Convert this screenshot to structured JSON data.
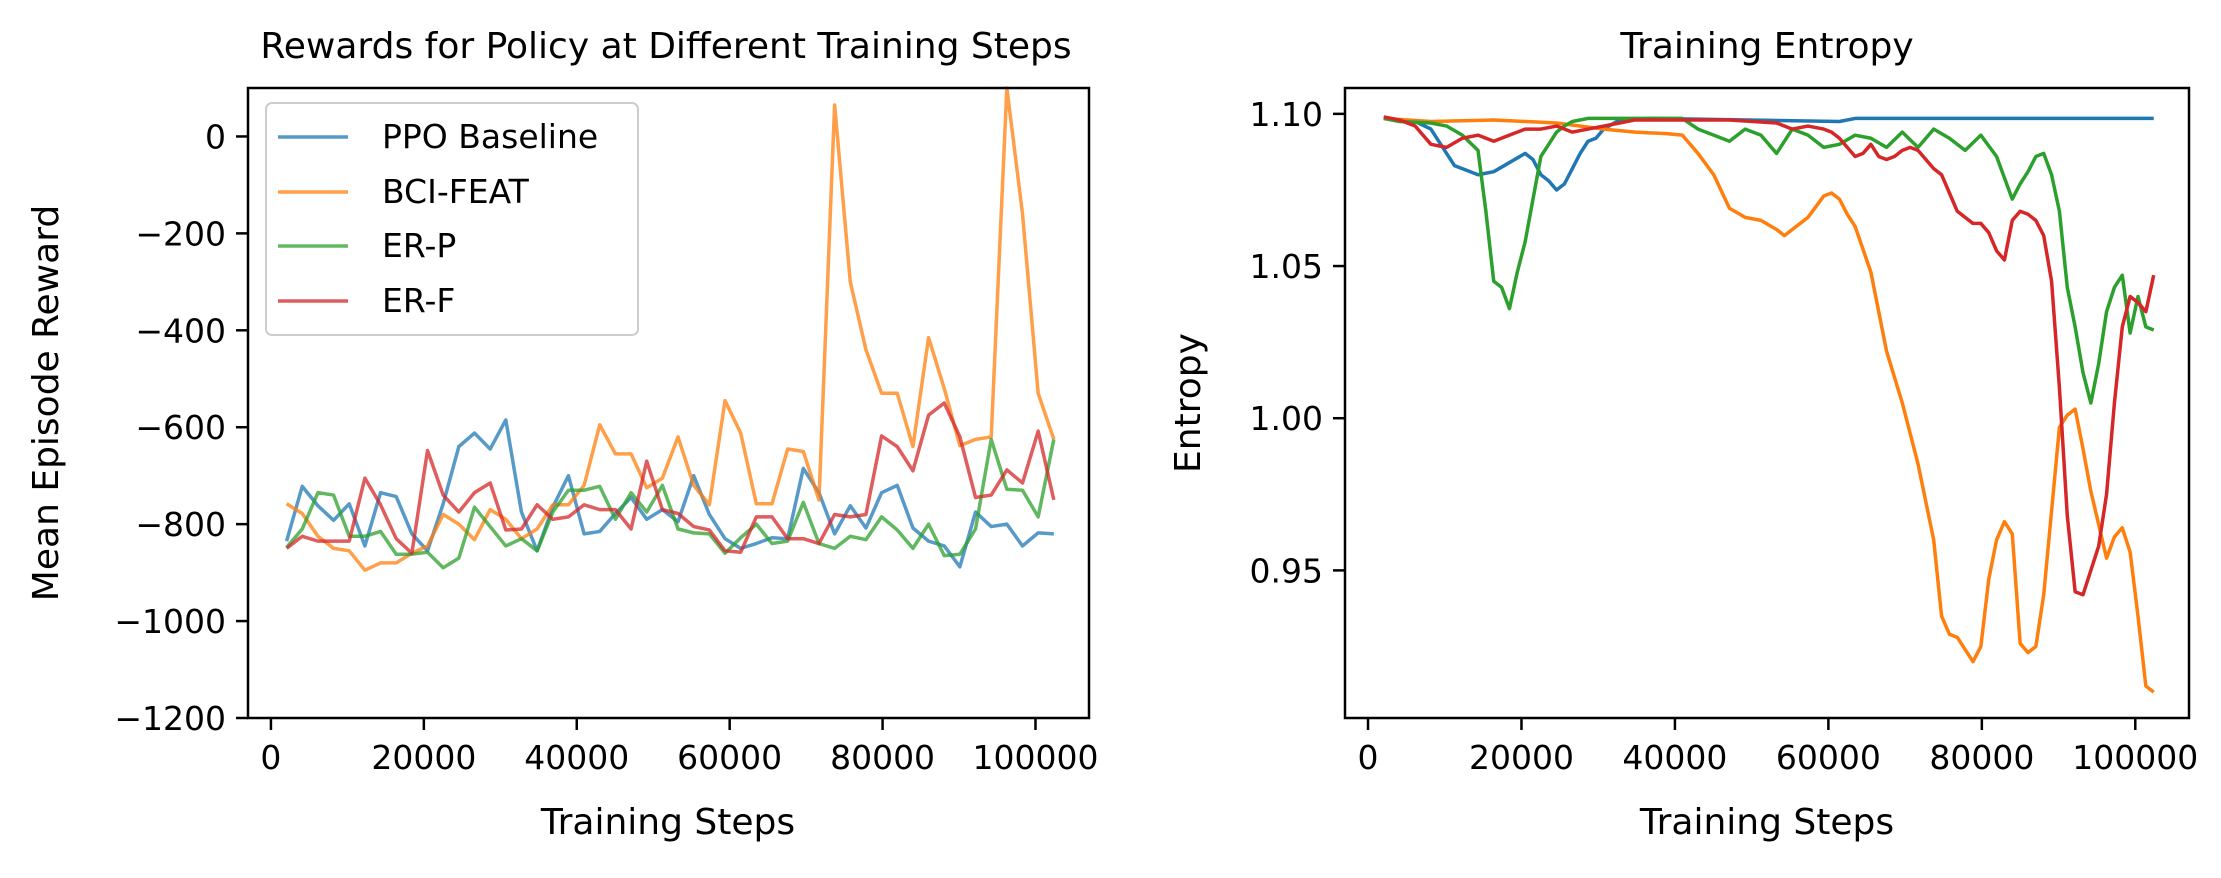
{
  "colors": {
    "ppo": "#1f77b4",
    "bci": "#ff7f0e",
    "erp": "#2ca02c",
    "erf": "#d62728"
  },
  "chart_data": [
    {
      "type": "line",
      "title": "Rewards for Policy at Different Training Steps",
      "xlabel": "Training Steps",
      "ylabel": "Mean Episode Reward",
      "xlim": [
        -3000,
        107000
      ],
      "ylim": [
        -1200,
        100
      ],
      "xticks": [
        0,
        20000,
        40000,
        60000,
        80000,
        100000
      ],
      "yticks": [
        -1200,
        -1000,
        -800,
        -600,
        -400,
        -200,
        0
      ],
      "ytick_labels": [
        "−1200",
        "−1000",
        "−800",
        "−600",
        "−400",
        "−200",
        "0"
      ],
      "grid": false,
      "legend": "top-left",
      "series": [
        {
          "name": "PPO Baseline",
          "color_key": "ppo",
          "alpha": 0.75,
          "x": [
            2048,
            4096,
            6144,
            8192,
            10240,
            12288,
            14336,
            16384,
            18432,
            20480,
            22528,
            24576,
            26624,
            28672,
            30720,
            32768,
            34816,
            36864,
            38912,
            40960,
            43008,
            45056,
            47104,
            49152,
            51200,
            53248,
            55296,
            57344,
            59392,
            61440,
            63488,
            65536,
            67584,
            69632,
            71680,
            73728,
            75776,
            77824,
            79872,
            81920,
            83968,
            86016,
            88064,
            90112,
            92160,
            94208,
            96256,
            98304,
            100352,
            102400
          ],
          "values": [
            -835,
            -722,
            -762,
            -792,
            -758,
            -845,
            -735,
            -743,
            -820,
            -855,
            -758,
            -640,
            -612,
            -645,
            -585,
            -775,
            -855,
            -765,
            -700,
            -820,
            -815,
            -778,
            -745,
            -790,
            -770,
            -795,
            -700,
            -780,
            -830,
            -850,
            -840,
            -828,
            -830,
            -685,
            -735,
            -820,
            -762,
            -808,
            -735,
            -720,
            -808,
            -835,
            -845,
            -888,
            -775,
            -805,
            -800,
            -845,
            -818,
            -820
          ]
        },
        {
          "name": "BCI-FEAT",
          "color_key": "bci",
          "alpha": 0.75,
          "x": [
            2048,
            4096,
            6144,
            8192,
            10240,
            12288,
            14336,
            16384,
            18432,
            20480,
            22528,
            24576,
            26624,
            28672,
            30720,
            32768,
            34816,
            36864,
            38912,
            40960,
            43008,
            45056,
            47104,
            49152,
            51200,
            53248,
            55296,
            57344,
            59392,
            61440,
            63488,
            65536,
            67584,
            69632,
            71680,
            73728,
            75776,
            77824,
            79872,
            81920,
            83968,
            86016,
            88064,
            90112,
            92160,
            94208,
            96256,
            98304,
            100352,
            102400
          ],
          "values": [
            -758,
            -778,
            -825,
            -850,
            -855,
            -895,
            -880,
            -880,
            -860,
            -845,
            -780,
            -800,
            -832,
            -770,
            -790,
            -830,
            -810,
            -760,
            -760,
            -720,
            -595,
            -655,
            -655,
            -725,
            -705,
            -620,
            -720,
            -760,
            -545,
            -612,
            -758,
            -758,
            -645,
            -650,
            -750,
            65,
            -300,
            -440,
            -530,
            -530,
            -640,
            -415,
            -520,
            -638,
            -625,
            -620,
            100,
            -160,
            -530,
            -625
          ]
        },
        {
          "name": "ER-P",
          "color_key": "erp",
          "alpha": 0.75,
          "x": [
            2048,
            4096,
            6144,
            8192,
            10240,
            12288,
            14336,
            16384,
            18432,
            20480,
            22528,
            24576,
            26624,
            28672,
            30720,
            32768,
            34816,
            36864,
            38912,
            40960,
            43008,
            45056,
            47104,
            49152,
            51200,
            53248,
            55296,
            57344,
            59392,
            61440,
            63488,
            65536,
            67584,
            69632,
            71680,
            73728,
            75776,
            77824,
            79872,
            81920,
            83968,
            86016,
            88064,
            90112,
            92160,
            94208,
            96256,
            98304,
            100352,
            102400
          ],
          "values": [
            -848,
            -810,
            -735,
            -740,
            -825,
            -825,
            -815,
            -862,
            -862,
            -858,
            -890,
            -870,
            -765,
            -805,
            -845,
            -830,
            -855,
            -775,
            -730,
            -730,
            -722,
            -790,
            -735,
            -775,
            -720,
            -810,
            -818,
            -820,
            -860,
            -828,
            -800,
            -840,
            -835,
            -755,
            -840,
            -850,
            -825,
            -832,
            -785,
            -812,
            -850,
            -800,
            -865,
            -862,
            -810,
            -625,
            -728,
            -730,
            -785,
            -625
          ]
        },
        {
          "name": "ER-F",
          "color_key": "erf",
          "alpha": 0.75,
          "x": [
            2048,
            4096,
            6144,
            8192,
            10240,
            12288,
            14336,
            16384,
            18432,
            20480,
            22528,
            24576,
            26624,
            28672,
            30720,
            32768,
            34816,
            36864,
            38912,
            40960,
            43008,
            45056,
            47104,
            49152,
            51200,
            53248,
            55296,
            57344,
            59392,
            61440,
            63488,
            65536,
            67584,
            69632,
            71680,
            73728,
            75776,
            77824,
            79872,
            81920,
            83968,
            86016,
            88064,
            90112,
            92160,
            94208,
            96256,
            98304,
            100352,
            102400
          ],
          "values": [
            -850,
            -825,
            -835,
            -835,
            -835,
            -705,
            -760,
            -830,
            -860,
            -648,
            -740,
            -775,
            -735,
            -715,
            -812,
            -810,
            -760,
            -790,
            -785,
            -760,
            -770,
            -770,
            -810,
            -670,
            -770,
            -778,
            -805,
            -812,
            -855,
            -858,
            -785,
            -785,
            -830,
            -830,
            -840,
            -780,
            -785,
            -780,
            -618,
            -640,
            -690,
            -575,
            -550,
            -620,
            -745,
            -740,
            -688,
            -715,
            -608,
            -750
          ]
        }
      ]
    },
    {
      "type": "line",
      "title": "Training Entropy",
      "xlabel": "Training Steps",
      "ylabel": "Entropy",
      "xlim": [
        -3000,
        107000
      ],
      "ylim": [
        0.9015,
        1.1085
      ],
      "xticks": [
        0,
        20000,
        40000,
        60000,
        80000,
        100000
      ],
      "yticks": [
        0.95,
        1.0,
        1.05,
        1.1
      ],
      "ytick_labels": [
        "0.95",
        "1.00",
        "1.05",
        "1.10"
      ],
      "grid": false,
      "legend": "none",
      "series": [
        {
          "color_key": "ppo",
          "alpha": 1,
          "x": [
            2048,
            6144,
            8192,
            10240,
            11264,
            12288,
            14336,
            16384,
            18432,
            20480,
            21504,
            22528,
            23552,
            24576,
            25600,
            26624,
            27648,
            28672,
            29696,
            30720,
            32768,
            36864,
            61440,
            63488,
            102400
          ],
          "values": [
            1.0985,
            1.0975,
            1.095,
            1.087,
            1.083,
            1.082,
            1.08,
            1.081,
            1.084,
            1.087,
            1.085,
            1.08,
            1.078,
            1.075,
            1.077,
            1.082,
            1.087,
            1.091,
            1.092,
            1.095,
            1.098,
            1.0985,
            1.0975,
            1.0985,
            1.0985
          ]
        },
        {
          "color_key": "bci",
          "alpha": 1,
          "x": [
            2048,
            8192,
            16384,
            24576,
            30720,
            34816,
            38912,
            40960,
            43008,
            45056,
            47104,
            49152,
            51200,
            53248,
            54272,
            55296,
            57344,
            59392,
            60416,
            61440,
            62464,
            63488,
            65536,
            67584,
            69632,
            71680,
            73728,
            74752,
            75776,
            76800,
            77824,
            78848,
            79872,
            80896,
            81920,
            82944,
            83968,
            84992,
            86016,
            87040,
            88064,
            90112,
            91136,
            92160,
            93184,
            94208,
            95232,
            96256,
            97280,
            98304,
            99328,
            100352,
            101376,
            102400
          ],
          "values": [
            1.0985,
            1.0975,
            1.098,
            1.097,
            1.095,
            1.094,
            1.0935,
            1.093,
            1.087,
            1.08,
            1.069,
            1.066,
            1.065,
            1.062,
            1.06,
            1.062,
            1.066,
            1.073,
            1.074,
            1.072,
            1.067,
            1.063,
            1.048,
            1.022,
            1.005,
            0.985,
            0.96,
            0.935,
            0.929,
            0.928,
            0.924,
            0.92,
            0.925,
            0.947,
            0.96,
            0.966,
            0.962,
            0.926,
            0.923,
            0.925,
            0.942,
            0.997,
            1.001,
            1.003,
            0.99,
            0.976,
            0.965,
            0.954,
            0.961,
            0.964,
            0.956,
            0.935,
            0.912,
            0.91
          ]
        },
        {
          "color_key": "erp",
          "alpha": 1,
          "x": [
            2048,
            4096,
            8192,
            10240,
            12288,
            14336,
            15360,
            16384,
            17408,
            18432,
            19456,
            20480,
            21504,
            22528,
            23552,
            24576,
            25600,
            26624,
            28672,
            30720,
            32768,
            34816,
            40960,
            43008,
            45056,
            47104,
            49152,
            51200,
            53248,
            55296,
            57344,
            59392,
            61440,
            63488,
            65536,
            67584,
            69632,
            71680,
            73728,
            75776,
            77824,
            79872,
            81920,
            83968,
            84992,
            86016,
            87040,
            88064,
            89088,
            90112,
            91136,
            92160,
            93184,
            94208,
            95232,
            96256,
            97280,
            98304,
            99328,
            100352,
            101376,
            102400
          ],
          "values": [
            1.0985,
            1.0975,
            1.097,
            1.096,
            1.093,
            1.088,
            1.068,
            1.045,
            1.043,
            1.036,
            1.048,
            1.058,
            1.072,
            1.086,
            1.09,
            1.094,
            1.096,
            1.0975,
            1.0985,
            1.0985,
            1.0985,
            1.0985,
            1.0985,
            1.095,
            1.093,
            1.091,
            1.095,
            1.093,
            1.087,
            1.095,
            1.093,
            1.089,
            1.09,
            1.093,
            1.092,
            1.089,
            1.094,
            1.089,
            1.095,
            1.092,
            1.088,
            1.093,
            1.086,
            1.072,
            1.077,
            1.081,
            1.086,
            1.087,
            1.08,
            1.068,
            1.043,
            1.03,
            1.015,
            1.005,
            1.018,
            1.035,
            1.043,
            1.047,
            1.028,
            1.04,
            1.03,
            1.029
          ]
        },
        {
          "color_key": "erf",
          "alpha": 1,
          "x": [
            2048,
            4096,
            6144,
            8192,
            10240,
            12288,
            14336,
            16384,
            18432,
            20480,
            22528,
            24576,
            26624,
            28672,
            30720,
            32768,
            34816,
            40960,
            47104,
            53248,
            55296,
            57344,
            59392,
            60416,
            61440,
            62464,
            63488,
            64512,
            65536,
            66560,
            67584,
            68608,
            69632,
            70656,
            71680,
            72704,
            73728,
            74752,
            75776,
            76800,
            77824,
            78848,
            79872,
            80896,
            81920,
            82944,
            83968,
            84992,
            86016,
            87040,
            88064,
            89088,
            90112,
            91136,
            92160,
            93184,
            94208,
            95232,
            96256,
            97280,
            98304,
            99328,
            100352,
            101376,
            102400
          ],
          "values": [
            1.099,
            1.098,
            1.096,
            1.09,
            1.089,
            1.092,
            1.093,
            1.091,
            1.093,
            1.095,
            1.095,
            1.096,
            1.094,
            1.095,
            1.096,
            1.097,
            1.098,
            1.098,
            1.098,
            1.097,
            1.095,
            1.096,
            1.095,
            1.094,
            1.092,
            1.089,
            1.086,
            1.087,
            1.09,
            1.086,
            1.085,
            1.086,
            1.088,
            1.089,
            1.088,
            1.085,
            1.082,
            1.08,
            1.074,
            1.068,
            1.066,
            1.064,
            1.064,
            1.061,
            1.055,
            1.052,
            1.065,
            1.068,
            1.067,
            1.065,
            1.06,
            1.045,
            1.01,
            0.968,
            0.943,
            0.942,
            0.95,
            0.958,
            0.975,
            1.005,
            1.03,
            1.04,
            1.038,
            1.035,
            1.047
          ]
        }
      ]
    }
  ]
}
